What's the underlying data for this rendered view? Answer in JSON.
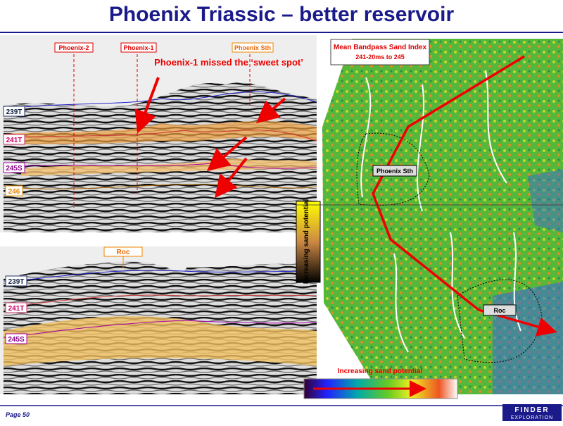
{
  "header": {
    "title": "Phoenix Triassic – better reservoir"
  },
  "seismic_top": {
    "wells": [
      "Phoenix-2",
      "Phoenix-1",
      "Phoenix Sth"
    ],
    "annotation": "Phoenix-1 missed the ‘sweet spot’",
    "horizons": [
      "239T",
      "241T",
      "245S",
      "246"
    ]
  },
  "seismic_bottom": {
    "well": "Roc",
    "horizons": [
      "239T",
      "241T",
      "245S"
    ]
  },
  "side_legend": {
    "label": "Increasing sand potential"
  },
  "map": {
    "title": "Mean Bandpass Sand Index",
    "subtitle": "241-20ms to 245",
    "labels": [
      "Phoenix Sth",
      "Roc"
    ],
    "legend_label": "Increasing sand potential"
  },
  "footer": {
    "page": "Page 50",
    "logo": [
      "FINDER",
      "EXPLORATION"
    ]
  }
}
